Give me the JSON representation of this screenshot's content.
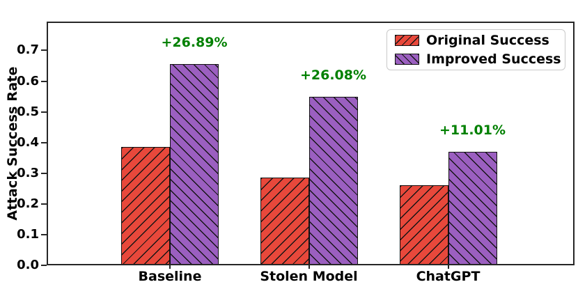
{
  "chart_data": {
    "type": "bar",
    "title": "",
    "xlabel": "",
    "ylabel": "Attack Success Rate",
    "categories": [
      "Baseline",
      "Stolen Model",
      "ChatGPT"
    ],
    "series": [
      {
        "name": "Original Success",
        "color": "#e8483b",
        "hatch": "/",
        "values": [
          0.386,
          0.287,
          0.26
        ]
      },
      {
        "name": "Improved Success",
        "color": "#9b5fc0",
        "hatch": "\\",
        "values": [
          0.655,
          0.548,
          0.37
        ]
      }
    ],
    "annotations": [
      {
        "text": "+26.89%",
        "above_category": "Baseline"
      },
      {
        "text": "+26.08%",
        "above_category": "Stolen Model"
      },
      {
        "text": "+11.01%",
        "above_category": "ChatGPT"
      }
    ],
    "annotation_color": "#008000",
    "yticks": [
      "0.0",
      "0.1",
      "0.2",
      "0.3",
      "0.4",
      "0.5",
      "0.6",
      "0.7"
    ],
    "ylim": [
      0,
      0.794
    ],
    "grid": false,
    "legend_position": "upper right",
    "axis_color": "#262626",
    "hatch_line_color": "#141414"
  }
}
